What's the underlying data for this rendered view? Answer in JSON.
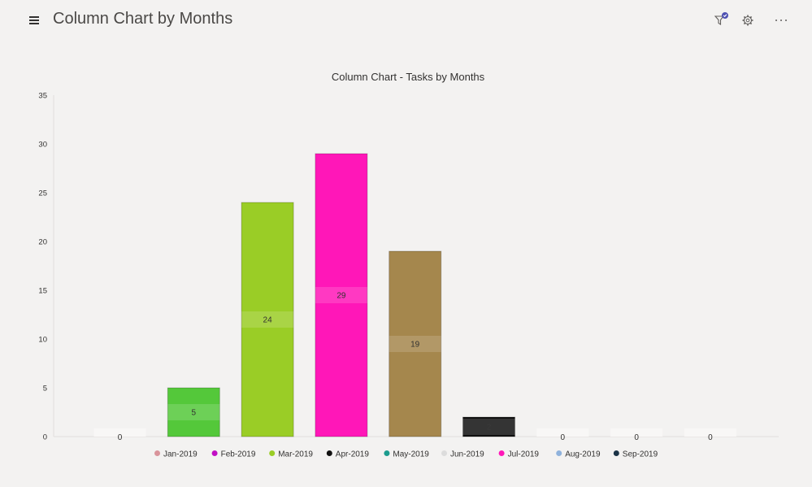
{
  "header": {
    "title": "Column Chart by Months",
    "icons": [
      "menu-icon",
      "filter-icon",
      "gear-icon",
      "more-icon"
    ],
    "filter_badge_color": "#4f52b2"
  },
  "chart_data": {
    "type": "bar",
    "title": "Column Chart - Tasks by Months",
    "xlabel": "",
    "ylabel": "",
    "ylim": [
      0,
      35
    ],
    "yticks": [
      "0",
      "5",
      "10",
      "15",
      "20",
      "25",
      "30",
      "35"
    ],
    "grid": false,
    "legend_position": "bottom",
    "categories": [
      "Jan-2019",
      "Feb-2019",
      "Mar-2019",
      "Apr-2019",
      "May-2019",
      "Jun-2019",
      "Jul-2019",
      "Aug-2019",
      "Sep-2019"
    ],
    "bars": [
      {
        "value": 0,
        "label": "0",
        "color": "#e0e0e0"
      },
      {
        "value": 5,
        "label": "5",
        "color": "#54c83a"
      },
      {
        "value": 24,
        "label": "24",
        "color": "#9acd26"
      },
      {
        "value": 29,
        "label": "29",
        "color": "#ff17b8"
      },
      {
        "value": 19,
        "label": "19",
        "color": "#a5874d"
      },
      {
        "value": 2,
        "label": "2",
        "color": "#111111"
      },
      {
        "value": 0,
        "label": "0",
        "color": "#e0e0e0"
      },
      {
        "value": 0,
        "label": "0",
        "color": "#e0e0e0"
      },
      {
        "value": 0,
        "label": "0",
        "color": "#e0e0e0"
      }
    ],
    "legend": [
      {
        "label": "Jan-2019",
        "color": "#d9949b"
      },
      {
        "label": "Feb-2019",
        "color": "#c10fc4"
      },
      {
        "label": "Mar-2019",
        "color": "#9acd26"
      },
      {
        "label": "Apr-2019",
        "color": "#111111"
      },
      {
        "label": "May-2019",
        "color": "#1c9c8e"
      },
      {
        "label": "Jun-2019",
        "color": "#dcdcdc"
      },
      {
        "label": "Jul-2019",
        "color": "#ff17b8"
      },
      {
        "label": "Aug-2019",
        "color": "#8fb2dc"
      },
      {
        "label": "Sep-2019",
        "color": "#1b3346"
      }
    ]
  }
}
